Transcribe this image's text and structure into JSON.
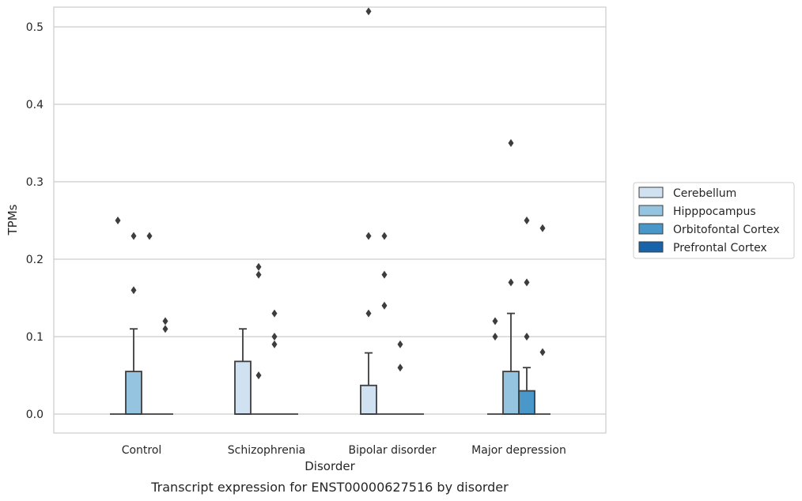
{
  "chart_data": {
    "type": "box",
    "caption": "Transcript expression for ENST00000627516 by disorder",
    "xlabel": "Disorder",
    "ylabel": "TPMs",
    "ylim": [
      -0.025,
      0.545
    ],
    "yticks": [
      0.0,
      0.1,
      0.2,
      0.3,
      0.4,
      0.5
    ],
    "ytick_labels": [
      "0.0",
      "0.1",
      "0.2",
      "0.3",
      "0.4",
      "0.5"
    ],
    "grid": "horizontal",
    "legend_position": "right",
    "categories": [
      "Control",
      "Schizophrenia",
      "Bipolar disorder",
      "Major depression"
    ],
    "series": [
      {
        "name": "Cerebellum",
        "color": "#d0e1f2",
        "boxes": [
          {
            "q1": 0.0,
            "median": 0.0,
            "q3": 0.0,
            "whisker_low": 0.0,
            "whisker_high": 0.0,
            "outliers": [
              0.25
            ]
          },
          {
            "q1": 0.0,
            "median": 0.0,
            "q3": 0.068,
            "whisker_low": 0.0,
            "whisker_high": 0.11,
            "outliers": []
          },
          {
            "q1": 0.0,
            "median": 0.0,
            "q3": 0.037,
            "whisker_low": 0.0,
            "whisker_high": 0.079,
            "outliers": [
              0.13,
              0.23,
              0.52
            ]
          },
          {
            "q1": 0.0,
            "median": 0.0,
            "q3": 0.0,
            "whisker_low": 0.0,
            "whisker_high": 0.0,
            "outliers": [
              0.1,
              0.12
            ]
          }
        ]
      },
      {
        "name": "Hipppocampus",
        "color": "#94c4df",
        "boxes": [
          {
            "q1": 0.0,
            "median": 0.0,
            "q3": 0.055,
            "whisker_low": 0.0,
            "whisker_high": 0.11,
            "outliers": [
              0.16,
              0.23
            ]
          },
          {
            "q1": 0.0,
            "median": 0.0,
            "q3": 0.0,
            "whisker_low": 0.0,
            "whisker_high": 0.0,
            "outliers": [
              0.05,
              0.18,
              0.19
            ]
          },
          {
            "q1": 0.0,
            "median": 0.0,
            "q3": 0.0,
            "whisker_low": 0.0,
            "whisker_high": 0.0,
            "outliers": [
              0.14,
              0.18,
              0.23
            ]
          },
          {
            "q1": 0.0,
            "median": 0.0,
            "q3": 0.055,
            "whisker_low": 0.0,
            "whisker_high": 0.13,
            "outliers": [
              0.17,
              0.35
            ]
          }
        ]
      },
      {
        "name": "Orbitofontal Cortex",
        "color": "#4a98c9",
        "boxes": [
          {
            "q1": 0.0,
            "median": 0.0,
            "q3": 0.0,
            "whisker_low": 0.0,
            "whisker_high": 0.0,
            "outliers": [
              0.23
            ]
          },
          {
            "q1": 0.0,
            "median": 0.0,
            "q3": 0.0,
            "whisker_low": 0.0,
            "whisker_high": 0.0,
            "outliers": [
              0.09,
              0.1,
              0.13
            ]
          },
          {
            "q1": 0.0,
            "median": 0.0,
            "q3": 0.0,
            "whisker_low": 0.0,
            "whisker_high": 0.0,
            "outliers": [
              0.06,
              0.09
            ]
          },
          {
            "q1": 0.0,
            "median": 0.0,
            "q3": 0.03,
            "whisker_low": 0.0,
            "whisker_high": 0.06,
            "outliers": [
              0.1,
              0.17,
              0.25
            ]
          }
        ]
      },
      {
        "name": "Prefrontal Cortex",
        "color": "#1764ab",
        "boxes": [
          {
            "q1": 0.0,
            "median": 0.0,
            "q3": 0.0,
            "whisker_low": 0.0,
            "whisker_high": 0.0,
            "outliers": [
              0.11,
              0.12
            ]
          },
          {
            "q1": 0.0,
            "median": 0.0,
            "q3": 0.0,
            "whisker_low": 0.0,
            "whisker_high": 0.0,
            "outliers": []
          },
          {
            "q1": 0.0,
            "median": 0.0,
            "q3": 0.0,
            "whisker_low": 0.0,
            "whisker_high": 0.0,
            "outliers": []
          },
          {
            "q1": 0.0,
            "median": 0.0,
            "q3": 0.0,
            "whisker_low": 0.0,
            "whisker_high": 0.0,
            "outliers": [
              0.08,
              0.24
            ]
          }
        ]
      }
    ]
  }
}
